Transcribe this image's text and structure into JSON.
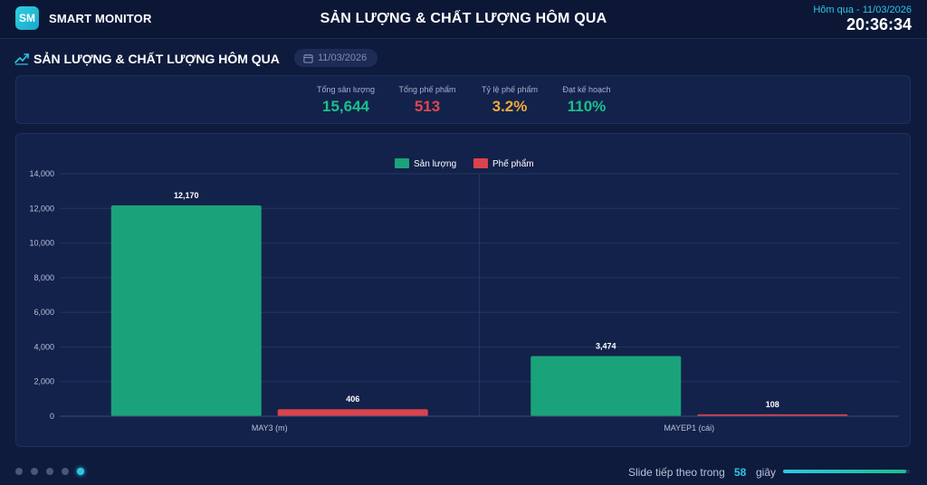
{
  "header": {
    "logo": "SM",
    "brand": "SMART MONITOR",
    "title": "SẢN LƯỢNG & CHẤT LƯỢNG HÔM QUA",
    "date_label": "Hôm qua - 11/03/2026",
    "time": "20:36:34"
  },
  "section": {
    "icon": "trend-line-icon",
    "title": "SẢN LƯỢNG & CHẤT LƯỢNG HÔM QUA",
    "date": "11/03/2026"
  },
  "kpis": [
    {
      "label": "Tổng sản lượng",
      "value": "15,644",
      "color": "#1bbf8e"
    },
    {
      "label": "Tổng phế phẩm",
      "value": "513",
      "color": "#e0474f"
    },
    {
      "label": "Tỷ lệ phế phẩm",
      "value": "3.2%",
      "color": "#f2a93b"
    },
    {
      "label": "Đạt kế hoạch",
      "value": "110%",
      "color": "#1bbf8e"
    }
  ],
  "chart_data": {
    "type": "bar",
    "categories": [
      "MAY3 (m)",
      "MAYEP1 (cái)"
    ],
    "series": [
      {
        "name": "Sản lượng",
        "values": [
          12170,
          3474
        ],
        "labels": [
          "12,170",
          "3,474"
        ],
        "color": "#1aa37a"
      },
      {
        "name": "Phế phẩm",
        "values": [
          406,
          108
        ],
        "labels": [
          "406",
          "108"
        ],
        "color": "#d9434d"
      }
    ],
    "ylim": [
      0,
      14000
    ],
    "yticks": [
      0,
      2000,
      4000,
      6000,
      8000,
      10000,
      12000,
      14000
    ],
    "ytick_labels": [
      "0",
      "2,000",
      "4,000",
      "6,000",
      "8,000",
      "10,000",
      "12,000",
      "14,000"
    ],
    "legend": "top-center",
    "grid": true
  },
  "footer": {
    "slides": 5,
    "active_slide": 5,
    "next_text": "Slide tiếp theo trong",
    "seconds": "58",
    "unit": "giây",
    "progress": 0.97
  }
}
